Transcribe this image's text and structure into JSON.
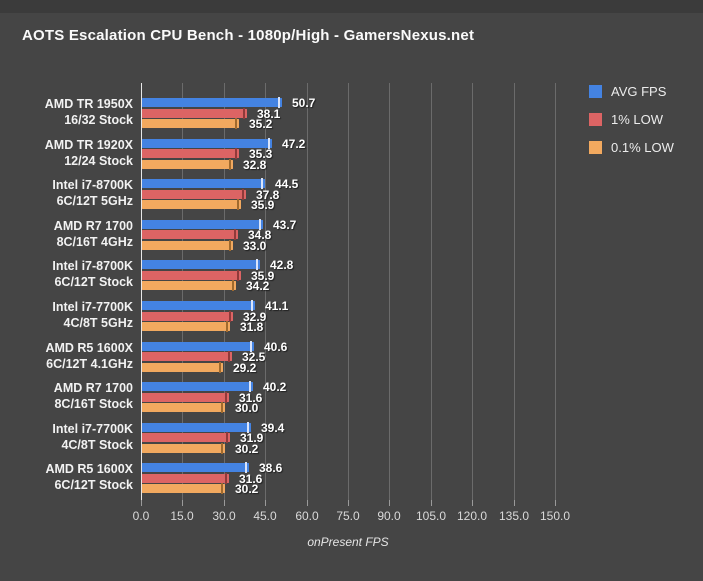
{
  "title": "AOTS Escalation CPU Bench - 1080p/High - GamersNexus.net",
  "colors": {
    "background": "#454545",
    "top_strip": "#3b3b3b",
    "gridline": "#6b6b6b",
    "axis_line": "#e8e8e8",
    "avg_fps_blue": "#4483e2",
    "one_pct_low_red": "#dc6464",
    "point1_pct_low_orange": "#f2a95f",
    "value_text": "#ffffff",
    "tick_text": "#d9d9d9"
  },
  "chart_data": {
    "type": "bar",
    "orientation": "horizontal",
    "title": "AOTS Escalation CPU Bench - 1080p/High - GamersNexus.net",
    "xlabel": "onPresent FPS",
    "xlim": [
      0,
      150
    ],
    "xtick_values": [
      0,
      15,
      30,
      45,
      60,
      75,
      90,
      105,
      120,
      135,
      150
    ],
    "xtick_labels": [
      "0.0",
      "15.0",
      "30.0",
      "45.0",
      "60.0",
      "75.0",
      "90.0",
      "105.0",
      "120.0",
      "135.0",
      "150.0"
    ],
    "grid": true,
    "legend_position": "top-right",
    "categories": [
      {
        "line1": "AMD TR 1950X",
        "line2": "16/32 Stock"
      },
      {
        "line1": "AMD TR 1920X",
        "line2": "12/24 Stock"
      },
      {
        "line1": "Intel i7-8700K",
        "line2": "6C/12T 5GHz"
      },
      {
        "line1": "AMD R7 1700",
        "line2": "8C/16T 4GHz"
      },
      {
        "line1": "Intel i7-8700K",
        "line2": "6C/12T Stock"
      },
      {
        "line1": "Intel i7-7700K",
        "line2": "4C/8T 5GHz"
      },
      {
        "line1": "AMD R5 1600X",
        "line2": "6C/12T 4.1GHz"
      },
      {
        "line1": "AMD R7 1700",
        "line2": "8C/16T Stock"
      },
      {
        "line1": "Intel i7-7700K",
        "line2": "4C/8T Stock"
      },
      {
        "line1": "AMD R5 1600X",
        "line2": "6C/12T Stock"
      }
    ],
    "series": [
      {
        "name": "AVG FPS",
        "slug": "avg-fps",
        "color": "#4483e2",
        "whisker_color": "#d9e4fa",
        "values": [
          50.7,
          47.2,
          44.5,
          43.7,
          42.8,
          41.1,
          40.6,
          40.2,
          39.4,
          38.6
        ]
      },
      {
        "name": "1% LOW",
        "slug": "1pct-low",
        "color": "#dc6464",
        "whisker_color": "#8f3a3a",
        "values": [
          38.1,
          35.3,
          37.8,
          34.8,
          35.9,
          32.9,
          32.5,
          31.6,
          31.9,
          31.6
        ]
      },
      {
        "name": "0.1% LOW",
        "slug": "01pct-low",
        "color": "#f2a95f",
        "whisker_color": "#a06a2e",
        "values": [
          35.2,
          32.8,
          35.9,
          33.0,
          34.2,
          31.8,
          29.2,
          30.0,
          30.2,
          30.2
        ]
      }
    ]
  }
}
